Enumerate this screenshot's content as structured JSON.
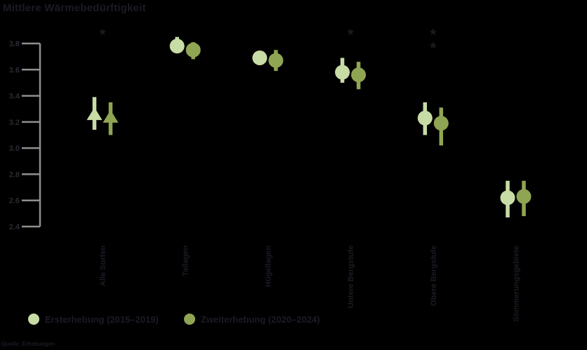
{
  "title": "Mittlere Wärmebedürftigkeit",
  "footer": {
    "source": "Quelle: Erhebungen"
  },
  "colors": {
    "background": "#000000",
    "axis": "#8f8f8f",
    "text_dark": "#1b1b24",
    "tick_text": "#2a2a34",
    "series1": "#c8dca6",
    "series2": "#90a553"
  },
  "legend": [
    {
      "label": "Ersterhebung (2015–2019)",
      "color": "#c8dca6"
    },
    {
      "label": "Zweiterhebung (2020–2024)",
      "color": "#90a553"
    }
  ],
  "chart_data": {
    "type": "scatter",
    "title": "Mittlere Wärmebedürftigkeit",
    "xlabel": "",
    "ylabel": "",
    "categories": [
      "Alle Sorten",
      "Tallagen",
      "Hügellagen",
      "Untere Bergstufe",
      "Obere Bergstufe",
      "Sömmerungsgebiete"
    ],
    "marker_shapes": [
      "triangle",
      "circle",
      "circle",
      "circle",
      "circle",
      "circle"
    ],
    "significance": [
      "*",
      "",
      "",
      "*",
      "**",
      ""
    ],
    "series": [
      {
        "name": "Ersterhebung (2015–2019)",
        "color": "#c8dca6",
        "values": [
          3.26,
          3.78,
          3.69,
          3.58,
          3.23,
          2.62
        ],
        "ci_low": [
          3.14,
          3.73,
          3.64,
          3.5,
          3.1,
          2.47
        ],
        "ci_high": [
          3.39,
          3.85,
          3.74,
          3.69,
          3.35,
          2.75
        ]
      },
      {
        "name": "Zweiterhebung (2020–2024)",
        "color": "#90a553",
        "values": [
          3.24,
          3.75,
          3.67,
          3.56,
          3.19,
          2.63
        ],
        "ci_low": [
          3.1,
          3.68,
          3.59,
          3.45,
          3.02,
          2.48
        ],
        "ci_high": [
          3.35,
          3.81,
          3.75,
          3.66,
          3.31,
          2.75
        ]
      }
    ],
    "ylim": [
      2.4,
      3.8
    ],
    "yticks": [
      "2.4",
      "2.6",
      "2.8",
      "3.0",
      "3.2",
      "3.4",
      "3.6",
      "3.8"
    ],
    "grid": false,
    "legend_position": "bottom"
  }
}
